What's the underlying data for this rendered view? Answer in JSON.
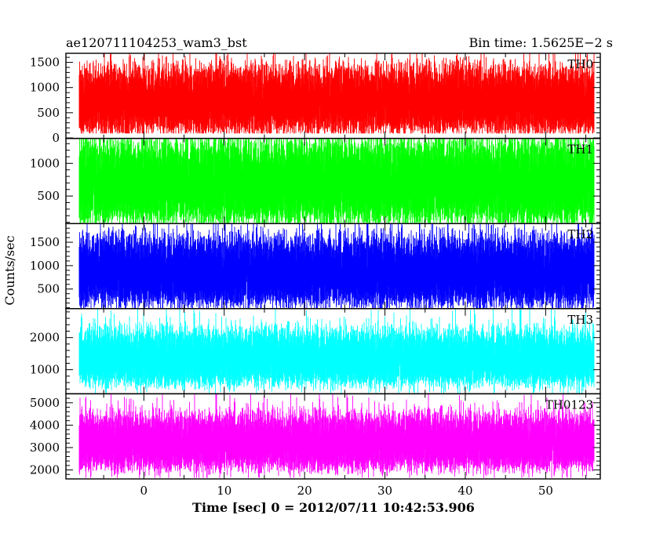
{
  "header": {
    "title": "ae120711104253_wam3_bst",
    "bin_time": "Bin time: 1.5625E−2 s"
  },
  "axes": {
    "xlabel": "Time [sec] 0 = 2012/07/11 10:42:53.906",
    "ylabel": "Counts/sec"
  },
  "chart_data": {
    "type": "line",
    "title": "ae120711104253_wam3_bst",
    "subtitle": "Bin time: 1.5625E−2 s",
    "xlabel": "Time [sec] 0 = 2012/07/11 10:42:53.906",
    "ylabel": "Counts/sec",
    "xlim": [
      -9.7,
      56.8
    ],
    "x_data_range": [
      -8.0,
      56.0
    ],
    "xticks": [
      0,
      10,
      20,
      30,
      40,
      50
    ],
    "grid": false,
    "panels": [
      {
        "name": "TH0",
        "color": "#ff0000",
        "ylim": [
          -10,
          1680
        ],
        "yticks": [
          0,
          500,
          1000,
          1500
        ],
        "baseline": 700,
        "typical_low": 200,
        "typical_high": 1300,
        "max": 1680,
        "min": 90
      },
      {
        "name": "TH1",
        "color": "#00ff00",
        "ylim": [
          80,
          1380
        ],
        "yticks": [
          500,
          1000
        ],
        "baseline": 700,
        "typical_low": 180,
        "typical_high": 1250,
        "max": 1380,
        "min": 90
      },
      {
        "name": "TH2",
        "color": "#0000ff",
        "ylim": [
          80,
          1900
        ],
        "yticks": [
          500,
          1000,
          1500
        ],
        "baseline": 800,
        "typical_low": 250,
        "typical_high": 1500,
        "max": 1900,
        "min": 90
      },
      {
        "name": "TH3",
        "color": "#00ffff",
        "ylim": [
          250,
          2900
        ],
        "yticks": [
          1000,
          2000
        ],
        "baseline": 1300,
        "typical_low": 650,
        "typical_high": 2100,
        "max": 2900,
        "min": 270
      },
      {
        "name": "TH0123",
        "color": "#ff00ff",
        "ylim": [
          1600,
          5400
        ],
        "yticks": [
          2000,
          3000,
          4000,
          5000
        ],
        "baseline": 3200,
        "typical_low": 2200,
        "typical_high": 4300,
        "max": 5400,
        "min": 1650
      }
    ]
  }
}
